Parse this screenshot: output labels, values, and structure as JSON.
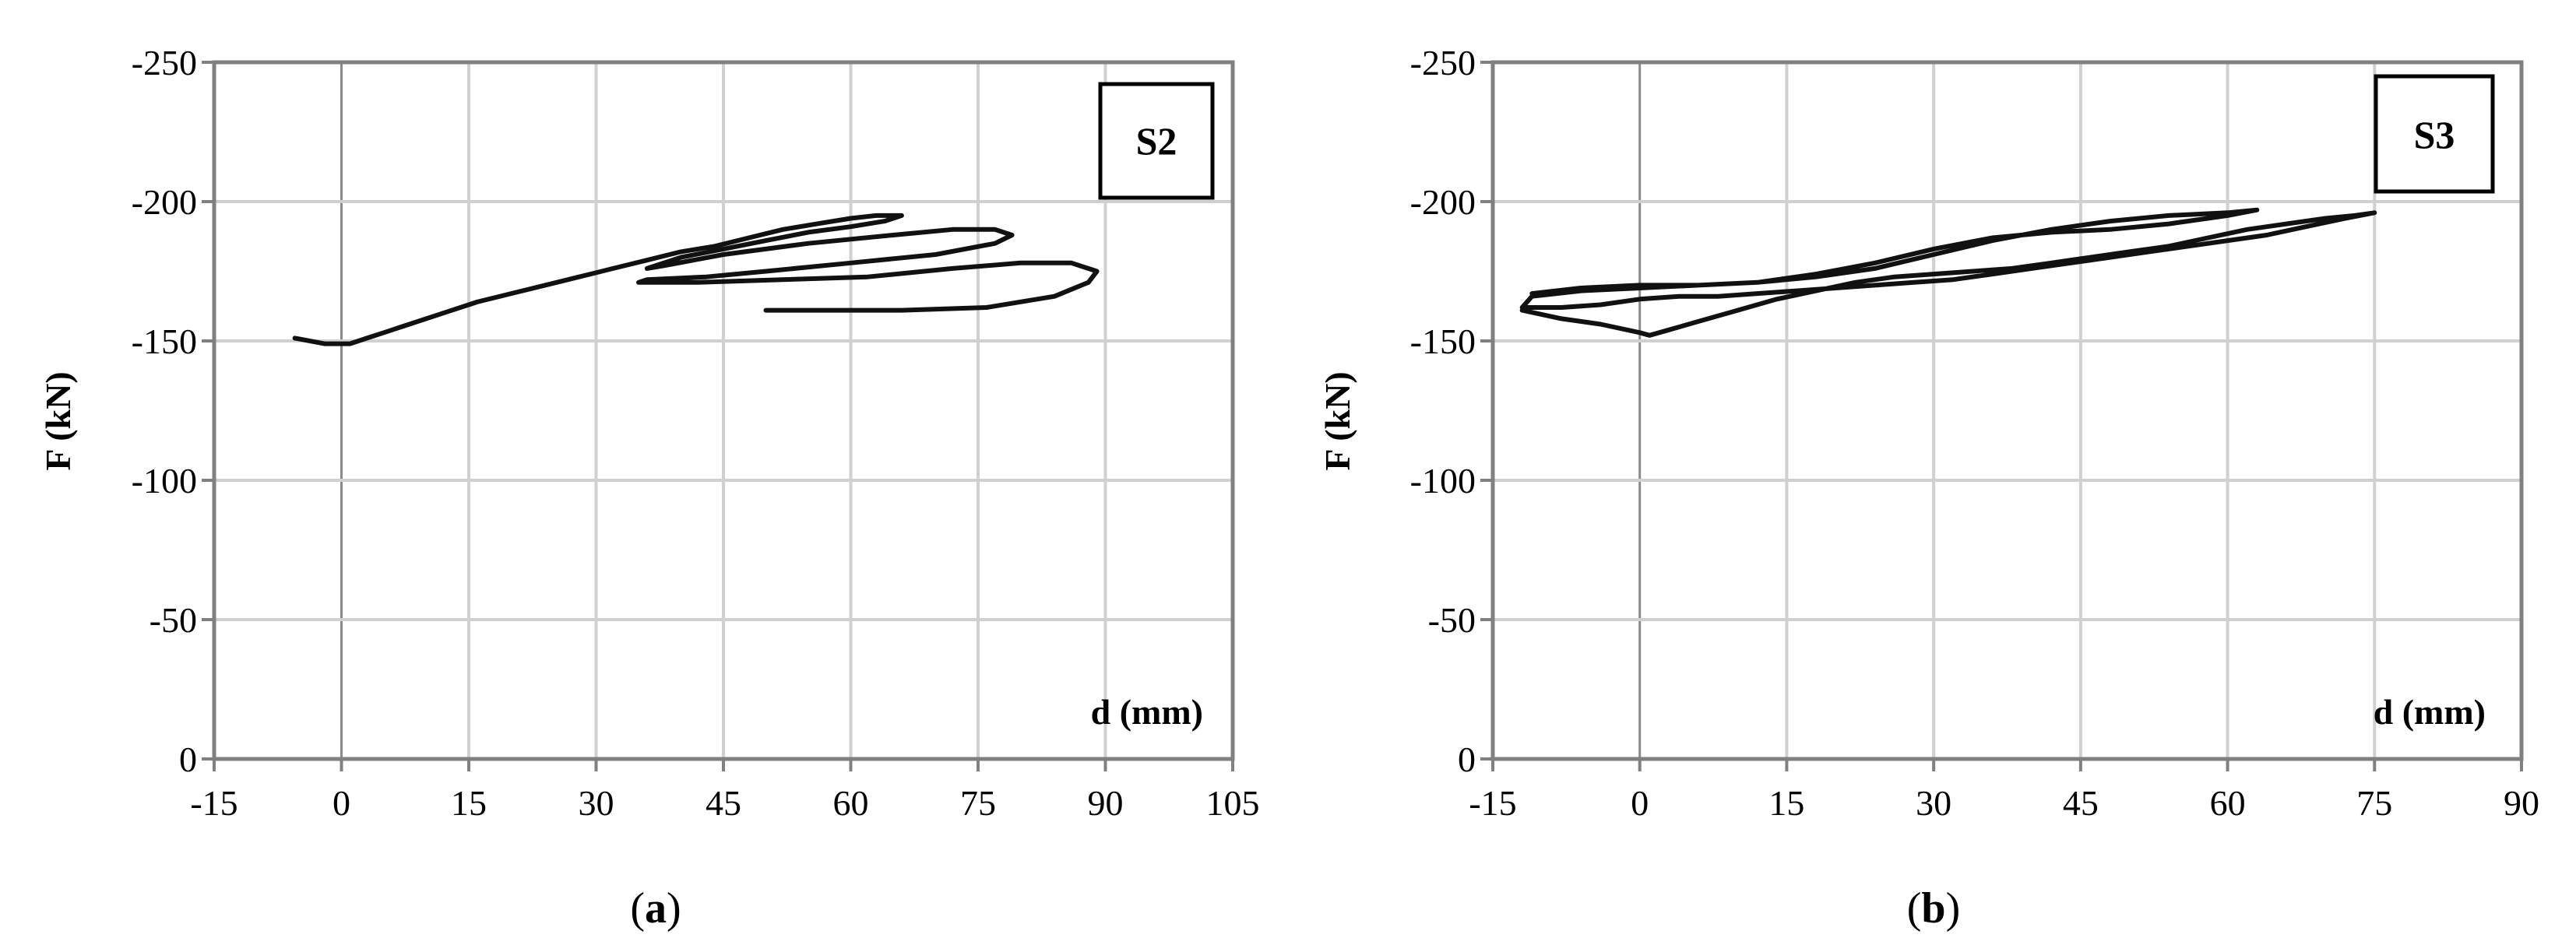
{
  "chart_data": [
    {
      "type": "line",
      "panel_label": "S2",
      "caption_open": "(",
      "caption_letter": "a",
      "caption_close": ")",
      "xlabel": "d (mm)",
      "ylabel": "F (kN)",
      "xlim": [
        -15,
        105
      ],
      "ylim": [
        0,
        -250
      ],
      "xticks": [
        -15,
        0,
        15,
        30,
        45,
        60,
        75,
        90,
        105
      ],
      "yticks": [
        0,
        -50,
        -100,
        -150,
        -200,
        -250
      ],
      "grid": true,
      "series": [
        {
          "x": [
            -5.5,
            -2,
            1,
            3,
            5,
            8,
            12,
            16,
            20,
            24,
            28,
            32,
            36,
            40,
            44,
            48,
            52,
            56,
            60,
            63,
            66,
            64,
            60,
            55,
            50,
            45,
            40,
            36,
            38,
            45,
            55,
            65,
            72,
            77,
            79,
            77,
            70,
            60,
            50,
            43,
            36,
            35,
            42,
            52,
            62,
            72,
            80,
            86,
            89,
            88,
            84,
            76,
            66,
            58,
            50
          ],
          "y": [
            -151,
            -149,
            -149,
            -151,
            -153,
            -156,
            -160,
            -164,
            -167,
            -170,
            -173,
            -176,
            -179,
            -182,
            -184,
            -187,
            -190,
            -192,
            -194,
            -195,
            -195,
            -193,
            -191,
            -189,
            -186,
            -183,
            -180,
            -176,
            -177,
            -181,
            -185,
            -188,
            -190,
            -190,
            -188,
            -185,
            -181,
            -178,
            -175,
            -173,
            -172,
            -171,
            -171,
            -172,
            -173,
            -176,
            -178,
            -178,
            -175,
            -171,
            -166,
            -162,
            -161,
            -161,
            -161
          ]
        }
      ]
    },
    {
      "type": "line",
      "panel_label": "S3",
      "caption_open": "(",
      "caption_letter": "b",
      "caption_close": ")",
      "xlabel": "d (mm)",
      "ylabel": "F (kN)",
      "xlim": [
        -15,
        90
      ],
      "ylim": [
        0,
        -250
      ],
      "xticks": [
        -15,
        0,
        15,
        30,
        45,
        60,
        75,
        90
      ],
      "yticks": [
        0,
        -50,
        -100,
        -150,
        -200,
        -250
      ],
      "grid": true,
      "series": [
        {
          "x": [
            -12,
            -8,
            -4,
            0,
            1,
            3,
            6,
            10,
            14,
            18,
            22,
            26,
            30,
            34,
            38,
            42,
            46,
            50,
            54,
            58,
            62,
            66,
            70,
            73,
            75,
            72,
            68,
            64,
            60,
            56,
            52,
            48,
            44,
            40,
            36,
            32,
            28,
            24,
            20,
            16,
            12,
            8,
            4,
            0,
            -4,
            -8,
            -12,
            -11,
            -6,
            0,
            6,
            12,
            18,
            24,
            30,
            36,
            42,
            48,
            54,
            60,
            63,
            60,
            54,
            48,
            42,
            36,
            30,
            24,
            18,
            12,
            6,
            0,
            -6,
            -11
          ],
          "y": [
            -161,
            -158,
            -156,
            -153,
            -152,
            -154,
            -157,
            -161,
            -165,
            -168,
            -171,
            -173,
            -174,
            -175,
            -176,
            -178,
            -180,
            -182,
            -184,
            -187,
            -190,
            -192,
            -194,
            -195,
            -196,
            -194,
            -191,
            -188,
            -186,
            -184,
            -182,
            -180,
            -178,
            -176,
            -174,
            -172,
            -171,
            -170,
            -169,
            -168,
            -167,
            -166,
            -166,
            -165,
            -163,
            -162,
            -162,
            -166,
            -168,
            -169,
            -170,
            -171,
            -173,
            -176,
            -181,
            -186,
            -190,
            -193,
            -195,
            -196,
            -197,
            -195,
            -192,
            -190,
            -189,
            -187,
            -183,
            -178,
            -174,
            -171,
            -170,
            -170,
            -169,
            -167
          ]
        }
      ]
    }
  ]
}
